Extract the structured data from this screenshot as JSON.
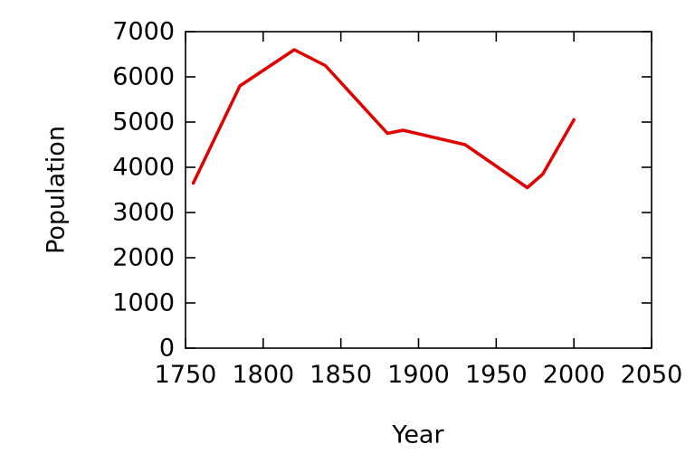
{
  "chart_data": {
    "type": "line",
    "title": "",
    "xlabel": "Year",
    "ylabel": "Population",
    "xlim": [
      1750,
      2050
    ],
    "ylim": [
      0,
      7000
    ],
    "x_ticks": [
      1750,
      1800,
      1850,
      1900,
      1950,
      2000,
      2050
    ],
    "y_ticks": [
      0,
      1000,
      2000,
      3000,
      4000,
      5000,
      6000,
      7000
    ],
    "grid": false,
    "legend": "none",
    "border_color": "#000000",
    "series": [
      {
        "name": "population",
        "color": "#e10000",
        "line_width": 3.5,
        "points": [
          [
            1755,
            3650
          ],
          [
            1785,
            5800
          ],
          [
            1820,
            6600
          ],
          [
            1840,
            6250
          ],
          [
            1880,
            4750
          ],
          [
            1890,
            4820
          ],
          [
            1930,
            4500
          ],
          [
            1970,
            3550
          ],
          [
            1980,
            3850
          ],
          [
            2000,
            5050
          ]
        ]
      }
    ]
  }
}
